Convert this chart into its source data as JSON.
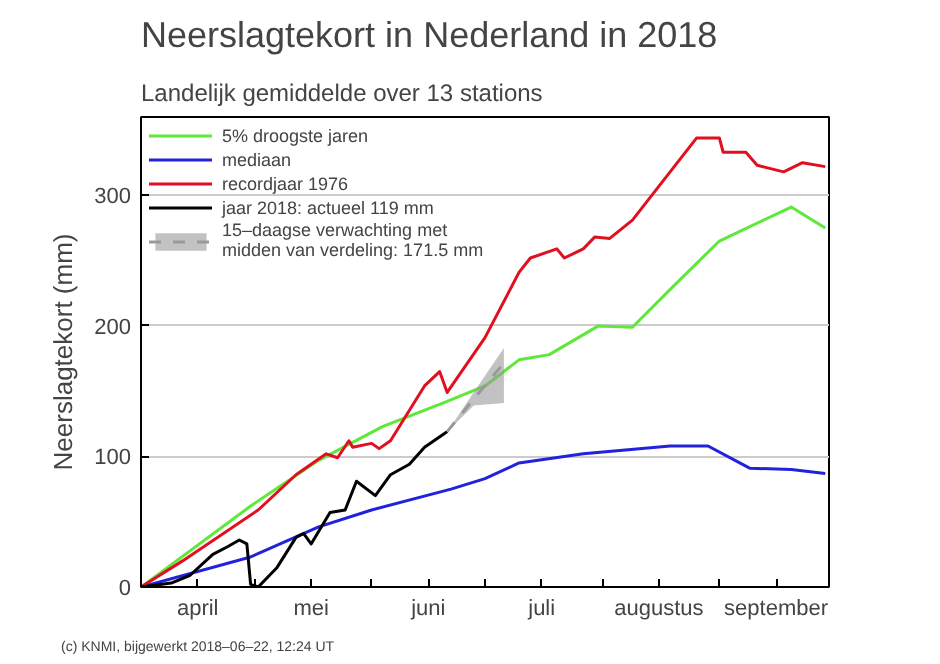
{
  "chart_data": {
    "type": "line",
    "title": "Neerslagtekort in Nederland in 2018",
    "subtitle": "Landelijk gemiddelde over 13 stations",
    "ylabel": "Neerslagtekort (mm)",
    "annotations": [
      "(c) KNMI, bijgewerkt 2018–06–22, 12:24 UT"
    ],
    "xlim": [
      "2018-04-01",
      "2018-09-30"
    ],
    "xticks": [
      {
        "value": "2018-04-01",
        "label": null
      },
      {
        "value": "2018-04-16",
        "label": "april"
      },
      {
        "value": "2018-05-01",
        "label": null
      },
      {
        "value": "2018-05-16",
        "label": "mei"
      },
      {
        "value": "2018-06-01",
        "label": null
      },
      {
        "value": "2018-06-16",
        "label": "juni"
      },
      {
        "value": "2018-07-01",
        "label": null
      },
      {
        "value": "2018-07-16",
        "label": "juli"
      },
      {
        "value": "2018-08-01",
        "label": null
      },
      {
        "value": "2018-08-16",
        "label": "augustus"
      },
      {
        "value": "2018-09-01",
        "label": null
      },
      {
        "value": "2018-09-16",
        "label": "september"
      }
    ],
    "ylim": [
      0,
      360
    ],
    "yticks": [
      0,
      100,
      200,
      300
    ],
    "grid": "y",
    "legend": "top left",
    "series": [
      {
        "name": "5% droogste jaren",
        "color": "#5ee83a",
        "x": [
          "2018-04-01",
          "2018-04-30",
          "2018-05-18",
          "2018-06-04",
          "2018-06-20",
          "2018-07-01",
          "2018-07-10",
          "2018-07-18",
          "2018-07-31",
          "2018-08-09",
          "2018-08-19",
          "2018-09-01",
          "2018-09-20",
          "2018-09-29"
        ],
        "values": [
          0,
          62,
          97,
          123,
          141,
          154,
          174,
          178,
          200,
          199,
          228,
          265,
          291,
          275
        ]
      },
      {
        "name": "mediaan",
        "color": "#2222dd",
        "x": [
          "2018-04-01",
          "2018-04-30",
          "2018-05-18",
          "2018-06-01",
          "2018-06-22",
          "2018-07-01",
          "2018-07-10",
          "2018-07-27",
          "2018-08-19",
          "2018-08-29",
          "2018-09-09",
          "2018-09-20",
          "2018-09-29"
        ],
        "values": [
          0,
          23,
          46,
          59,
          75,
          83,
          95,
          102,
          108,
          108,
          91,
          90,
          87
        ]
      },
      {
        "name": "recordjaar 1976",
        "color": "#e01020",
        "x": [
          "2018-04-01",
          "2018-04-12",
          "2018-05-02",
          "2018-05-12",
          "2018-05-20",
          "2018-05-23",
          "2018-05-26",
          "2018-05-27",
          "2018-06-01",
          "2018-06-03",
          "2018-06-06",
          "2018-06-15",
          "2018-06-19",
          "2018-06-21",
          "2018-07-01",
          "2018-07-10",
          "2018-07-13",
          "2018-07-20",
          "2018-07-22",
          "2018-07-27",
          "2018-07-30",
          "2018-08-03",
          "2018-08-09",
          "2018-08-26",
          "2018-09-01",
          "2018-09-02",
          "2018-09-08",
          "2018-09-11",
          "2018-09-18",
          "2018-09-23",
          "2018-09-29"
        ],
        "values": [
          0,
          20,
          59,
          86,
          102,
          99,
          112,
          107,
          110,
          106,
          112,
          154,
          165,
          149,
          191,
          241,
          252,
          259,
          252,
          259,
          268,
          267,
          281,
          344,
          344,
          333,
          333,
          323,
          318,
          325,
          322
        ]
      },
      {
        "name": "jaar 2018: actueel 119 mm",
        "color": "#000000",
        "x": [
          "2018-04-01",
          "2018-04-09",
          "2018-04-14",
          "2018-04-20",
          "2018-04-24",
          "2018-04-27",
          "2018-04-29",
          "2018-04-30",
          "2018-05-02",
          "2018-05-07",
          "2018-05-12",
          "2018-05-14",
          "2018-05-16",
          "2018-05-21",
          "2018-05-25",
          "2018-05-28",
          "2018-06-02",
          "2018-06-06",
          "2018-06-11",
          "2018-06-15",
          "2018-06-20",
          "2018-06-21"
        ],
        "values": [
          0,
          3,
          9,
          25,
          31,
          36,
          33,
          2,
          0,
          15,
          38,
          41,
          33,
          57,
          59,
          81,
          70,
          86,
          94,
          107,
          117,
          119
        ]
      },
      {
        "name": "15–daagse verwachting met\nmidden van verdeling: 171.5 mm",
        "color": "#999999",
        "line_style": "dashed",
        "x": [
          "2018-06-21",
          "2018-06-28",
          "2018-07-06"
        ],
        "values": [
          119,
          144,
          171.5
        ],
        "lower": [
          119,
          139,
          141
        ],
        "upper": [
          119,
          149,
          183
        ]
      }
    ]
  }
}
